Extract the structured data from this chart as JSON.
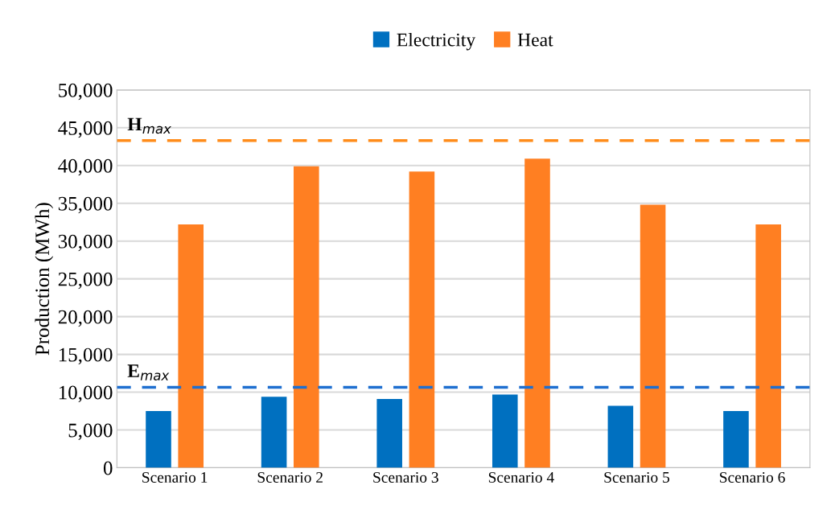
{
  "chart_data": {
    "type": "bar",
    "ylabel": "Production (MWh)",
    "categories": [
      "Scenario 1",
      "Scenario 2",
      "Scenario 3",
      "Scenario 4",
      "Scenario 5",
      "Scenario 6"
    ],
    "series": [
      {
        "name": "Electricity",
        "color": "#0070c0",
        "values": [
          7500,
          9400,
          9100,
          9700,
          8200,
          7500
        ]
      },
      {
        "name": "Heat",
        "color": "#ff7f22",
        "values": [
          32200,
          39900,
          39200,
          40900,
          34800,
          32200
        ]
      }
    ],
    "ylim": [
      0,
      50000
    ],
    "yticks": [
      {
        "value": 0,
        "label": "0"
      },
      {
        "value": 5000,
        "label": "5,000"
      },
      {
        "value": 10000,
        "label": "10,000"
      },
      {
        "value": 15000,
        "label": "15,000"
      },
      {
        "value": 20000,
        "label": "20,000"
      },
      {
        "value": 25000,
        "label": "25,000"
      },
      {
        "value": 30000,
        "label": "30,000"
      },
      {
        "value": 35000,
        "label": "35,000"
      },
      {
        "value": 40000,
        "label": "40,000"
      },
      {
        "value": 45000,
        "label": "45,000"
      },
      {
        "value": 50000,
        "label": "50,000"
      }
    ],
    "ref_lines": [
      {
        "axis": "y",
        "value": 43300,
        "label": "H$_{max}$",
        "color": "#ff8c1a",
        "line_style": "dashed"
      },
      {
        "axis": "y",
        "value": 10650,
        "label": "E$_{max}$",
        "color": "#1f6fd0",
        "line_style": "dashed"
      }
    ],
    "grid": "y",
    "legend": "top"
  }
}
